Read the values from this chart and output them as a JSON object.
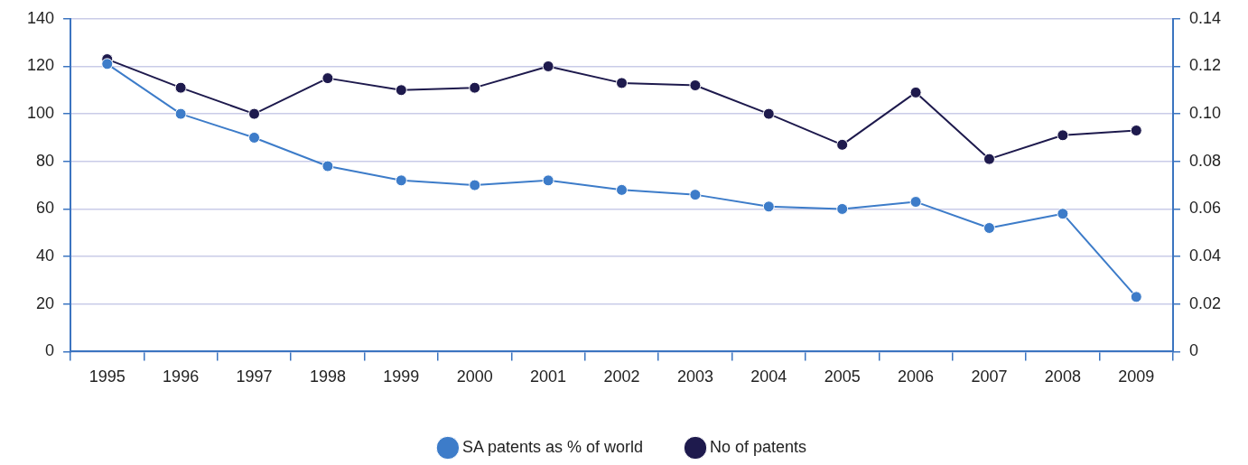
{
  "chart_data": {
    "type": "line",
    "categories": [
      "1995",
      "1996",
      "1997",
      "1998",
      "1999",
      "2000",
      "2001",
      "2002",
      "2003",
      "2004",
      "2005",
      "2006",
      "2007",
      "2008",
      "2009"
    ],
    "series": [
      {
        "name": "No of patents",
        "color": "#1e1a4d",
        "values": [
          123,
          111,
          100,
          115,
          110,
          111,
          120,
          113,
          112,
          100,
          87,
          109,
          81,
          91,
          93
        ]
      },
      {
        "name": "SA patents as % of world",
        "color": "#3d7cc9",
        "axis": "y2",
        "values": [
          0.121,
          0.1,
          0.09,
          0.078,
          0.072,
          0.07,
          0.072,
          0.068,
          0.066,
          0.061,
          0.06,
          0.063,
          0.052,
          0.058,
          0.023
        ]
      }
    ],
    "ylim": [
      0,
      140
    ],
    "yticks": [
      0,
      20,
      40,
      60,
      80,
      100,
      120,
      140
    ],
    "y2lim": [
      0,
      0.14
    ],
    "y2ticks": [
      0,
      0.02,
      0.04,
      0.06,
      0.08,
      {
        "value": 0.1,
        "label": "0.10"
      },
      0.12,
      0.14
    ],
    "grid": "y",
    "legend": "bottom",
    "marker": "circle",
    "line_style": "solid"
  }
}
